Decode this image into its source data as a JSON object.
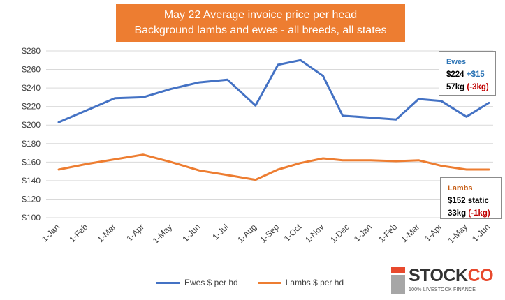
{
  "title": {
    "line1": "May 22 Average invoice price per head",
    "line2": "Background lambs and ewes - all breeds, all states"
  },
  "callouts": {
    "ewes": {
      "label": "Ewes",
      "price": "$224",
      "change": "+$15",
      "weight": "57kg",
      "weight_change": "(-3kg)"
    },
    "lambs": {
      "label": "Lambs",
      "price": "$152",
      "change": "static",
      "weight": "33kg",
      "weight_change": "(-1kg)"
    }
  },
  "logo": {
    "word_a": "STOCK",
    "word_b": "CO",
    "tagline": "100% LIVESTOCK FINANCE"
  },
  "chart_data": {
    "type": "line",
    "categories": [
      "1-Jan",
      "1-Feb",
      "1-Mar",
      "1-Apr",
      "1-May",
      "1-Jun",
      "1-Jul",
      "1-Aug",
      "1-Sep",
      "1-Oct",
      "1-Nov",
      "1-Dec",
      "1-Jan",
      "1-Feb",
      "1-Mar",
      "1-Apr",
      "1-May",
      "1-Jun"
    ],
    "x_positions": [
      0,
      1,
      2,
      3,
      4,
      5,
      6,
      7,
      7.8,
      8.6,
      9.4,
      10.1,
      11.1,
      12,
      12.8,
      13.6,
      14.5,
      15.3
    ],
    "x_label_positions": [
      0,
      1,
      2,
      3,
      4,
      5,
      6,
      7,
      7.8,
      8.6,
      9.4,
      10.3,
      11.1,
      12,
      12.8,
      13.6,
      14.5,
      15.3
    ],
    "series": [
      {
        "name": "Ewes $ per hd",
        "color": "#4472c4",
        "values": [
          203,
          216,
          229,
          230,
          239,
          246,
          249,
          221,
          265,
          270,
          253,
          210,
          208,
          206,
          228,
          226,
          209,
          224
        ]
      },
      {
        "name": "Lambs $ per hd",
        "color": "#ed7d31",
        "values": [
          152,
          158,
          163,
          168,
          160,
          151,
          146,
          141,
          152,
          159,
          164,
          162,
          162,
          161,
          162,
          156,
          152,
          152
        ]
      }
    ],
    "ylim": [
      100,
      280
    ],
    "yticks": [
      100,
      120,
      140,
      160,
      180,
      200,
      220,
      240,
      260,
      280
    ],
    "ytick_labels": [
      "$100",
      "$120",
      "$140",
      "$160",
      "$180",
      "$200",
      "$220",
      "$240",
      "$260",
      "$280"
    ],
    "grid": true,
    "legend": "bottom"
  }
}
